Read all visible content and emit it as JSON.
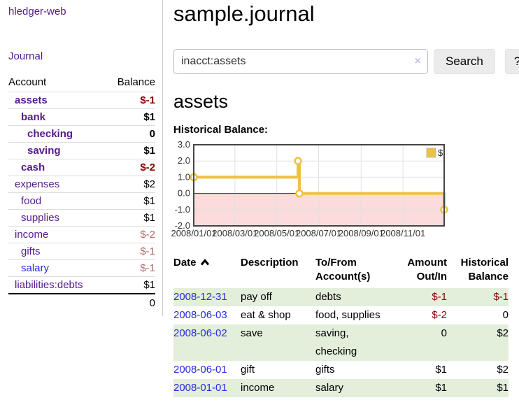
{
  "brand": {
    "title": "hledger-web"
  },
  "nav": {
    "journal": "Journal"
  },
  "sidebar": {
    "headers": {
      "account": "Account",
      "balance": "Balance"
    },
    "rows": [
      {
        "account": "assets",
        "balance": "$-1",
        "depth": 1,
        "bold": true,
        "balance_style": "neg-strong",
        "link_style": "purple"
      },
      {
        "account": "bank",
        "balance": "$1",
        "depth": 2,
        "bold": true,
        "balance_style": "pos",
        "link_style": "purple"
      },
      {
        "account": "checking",
        "balance": "0",
        "depth": 3,
        "bold": true,
        "balance_style": "pos",
        "link_style": "purple"
      },
      {
        "account": "saving",
        "balance": "$1",
        "depth": 3,
        "bold": true,
        "balance_style": "pos",
        "link_style": "purple"
      },
      {
        "account": "cash",
        "balance": "$-2",
        "depth": 2,
        "bold": true,
        "balance_style": "neg-strong",
        "link_style": "purple"
      },
      {
        "account": "expenses",
        "balance": "$2",
        "depth": 1,
        "bold": false,
        "balance_style": "pos",
        "link_style": "purple"
      },
      {
        "account": "food",
        "balance": "$1",
        "depth": 2,
        "bold": false,
        "balance_style": "pos",
        "link_style": "purple"
      },
      {
        "account": "supplies",
        "balance": "$1",
        "depth": 2,
        "bold": false,
        "balance_style": "pos",
        "link_style": "purple"
      },
      {
        "account": "income",
        "balance": "$-2",
        "depth": 1,
        "bold": false,
        "balance_style": "neg-soft",
        "link_style": "purple"
      },
      {
        "account": "gifts",
        "balance": "$-1",
        "depth": 2,
        "bold": false,
        "balance_style": "neg-soft",
        "link_style": "purple"
      },
      {
        "account": "salary",
        "balance": "$-1",
        "depth": 2,
        "bold": false,
        "balance_style": "neg-soft",
        "link_style": "blue"
      },
      {
        "account": "liabilities:debts",
        "balance": "$1",
        "depth": 1,
        "bold": false,
        "balance_style": "pos",
        "link_style": "purple"
      }
    ],
    "total": "0"
  },
  "header": {
    "title": "sample.journal"
  },
  "search": {
    "value": "inacct:assets",
    "clear_label": "×",
    "button_label": "Search",
    "help_label": "?"
  },
  "account_page": {
    "title": "assets",
    "chart_label": "Historical Balance:"
  },
  "chart_data": {
    "type": "line",
    "step": true,
    "title": "Historical Balance",
    "series": [
      {
        "name": "$",
        "color": "#edc240",
        "points": [
          [
            "2008-01-01",
            1
          ],
          [
            "2008-06-01",
            2
          ],
          [
            "2008-06-03",
            0
          ],
          [
            "2008-12-31",
            -1
          ]
        ]
      }
    ],
    "x_range": [
      "2008-01-01",
      "2008-12-31"
    ],
    "x_ticks": [
      "2008/01/01",
      "2008/03/01",
      "2008/05/01",
      "2008/07/01",
      "2008/09/01",
      "2008/11/01"
    ],
    "y_ticks": [
      "3.0",
      "2.0",
      "1.0",
      "0.0",
      "-1.0",
      "-2.0"
    ],
    "ylim": [
      -2,
      3
    ],
    "grid": true,
    "legend": {
      "label": "$",
      "position": "top-right"
    },
    "negative_region_color": "#fbdbdb",
    "zero_line_color": "#a00000",
    "grid_color": "#e2e2e2",
    "border_color": "#454545"
  },
  "register": {
    "headers": {
      "date": "Date",
      "description": "Description",
      "accounts": "To/From Account(s)",
      "amount": "Amount Out/In",
      "balance": "Historical Balance"
    },
    "sort_icon": "chevron-up",
    "rows": [
      {
        "date": "2008-12-31",
        "description": "pay off",
        "accounts": "debts",
        "amount": "$-1",
        "balance": "$-1",
        "amount_style": "neg-strong",
        "balance_style": "neg-strong",
        "striped": true
      },
      {
        "date": "2008-06-03",
        "description": "eat & shop",
        "accounts": "food, supplies",
        "amount": "$-2",
        "balance": "0",
        "amount_style": "neg-strong",
        "balance_style": "pos",
        "striped": false
      },
      {
        "date": "2008-06-02",
        "description": "save",
        "accounts": "saving, checking",
        "amount": "0",
        "balance": "$2",
        "amount_style": "pos",
        "balance_style": "pos",
        "striped": true
      },
      {
        "date": "2008-06-01",
        "description": "gift",
        "accounts": "gifts",
        "amount": "$1",
        "balance": "$2",
        "amount_style": "pos",
        "balance_style": "pos",
        "striped": false
      },
      {
        "date": "2008-01-01",
        "description": "income",
        "accounts": "salary",
        "amount": "$1",
        "balance": "$1",
        "amount_style": "pos",
        "balance_style": "pos",
        "striped": true
      }
    ]
  },
  "colors": {
    "link_purple": "#551a8b",
    "link_blue": "#2a2ae1",
    "negative_strong": "#8b0000",
    "negative_soft": "#b06a6a",
    "row_stripe_green": "#e3eedb",
    "series_gold": "#edc240"
  }
}
